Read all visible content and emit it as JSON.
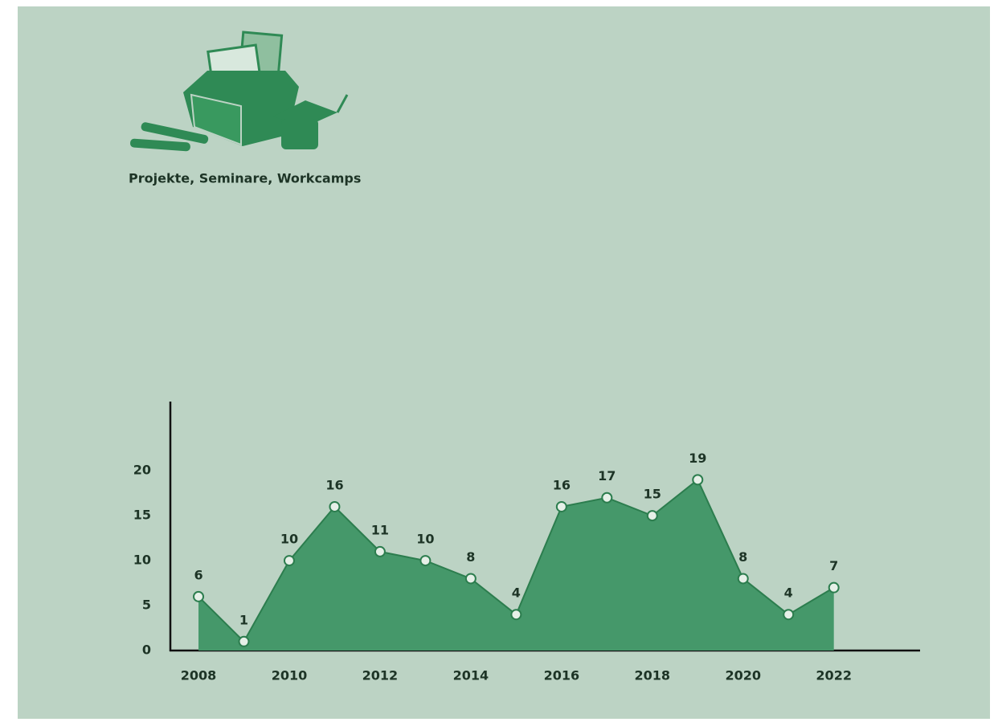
{
  "chart_data": {
    "type": "area",
    "title": "Projekte, Seminare, Workcamps",
    "x": [
      2008,
      2009,
      2010,
      2011,
      2012,
      2013,
      2014,
      2015,
      2016,
      2017,
      2018,
      2019,
      2020,
      2021,
      2022
    ],
    "values": [
      6,
      1,
      10,
      16,
      11,
      10,
      8,
      4,
      16,
      17,
      15,
      19,
      8,
      4,
      7
    ],
    "color": "#45986a",
    "xlim": [
      2007.38,
      2023.9
    ],
    "xticks": [
      2008,
      2010,
      2012,
      2014,
      2016,
      2018,
      2020,
      2022
    ],
    "ylim": [
      0,
      27.7
    ],
    "yticks": [
      0,
      5,
      10,
      15,
      20
    ],
    "grid": false
  }
}
